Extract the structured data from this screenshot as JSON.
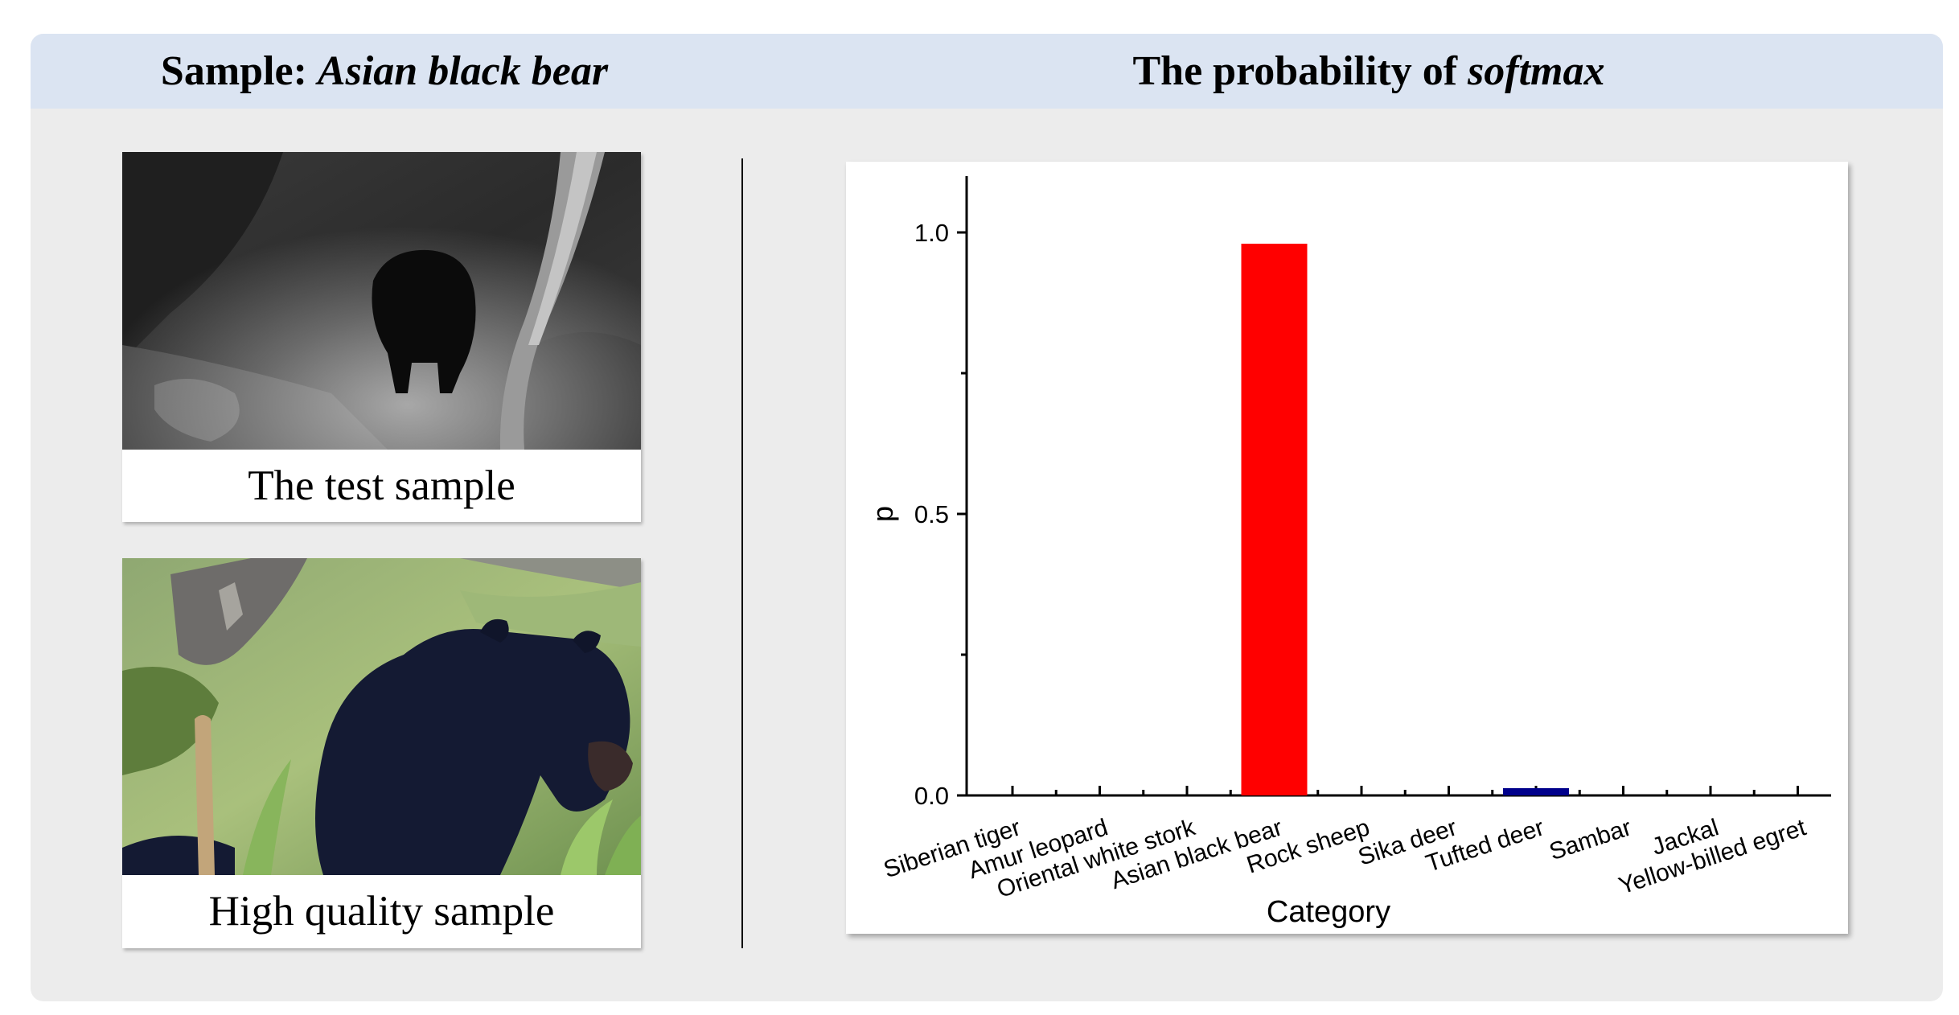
{
  "header": {
    "left_prefix": "Sample: ",
    "left_emph": "Asian black bear",
    "right_prefix": "The probability of ",
    "right_emph": "softmax"
  },
  "samples": [
    {
      "caption": "The test sample",
      "icon": "night-infrared-bear-photo"
    },
    {
      "caption": "High quality sample",
      "icon": "daylight-bear-photo"
    }
  ],
  "colors": {
    "header_bg": "#dbe4f2",
    "panel_bg": "#ececec",
    "bar_main": "#ff0000",
    "bar_second": "#00008b"
  },
  "chart_data": {
    "type": "bar",
    "title": "",
    "xlabel": "Category",
    "ylabel": "p",
    "ylim": [
      0,
      1.1
    ],
    "yticks": [
      "0.0",
      "0.5",
      "1.0"
    ],
    "categories": [
      "Siberian tiger",
      "Amur leopard",
      "Oriental white stork",
      "Asian black bear",
      "Rock sheep",
      "Sika deer",
      "Tufted deer",
      "Sambar",
      "Jackal",
      "Yellow-billed egret"
    ],
    "values": [
      0,
      0,
      0,
      0.98,
      0,
      0,
      0.013,
      0,
      0,
      0
    ],
    "bar_colors": [
      "#ff0000",
      "#ff0000",
      "#ff0000",
      "#ff0000",
      "#ff0000",
      "#ff0000",
      "#00008b",
      "#ff0000",
      "#ff0000",
      "#ff0000"
    ],
    "grid": false,
    "legend": "none"
  }
}
